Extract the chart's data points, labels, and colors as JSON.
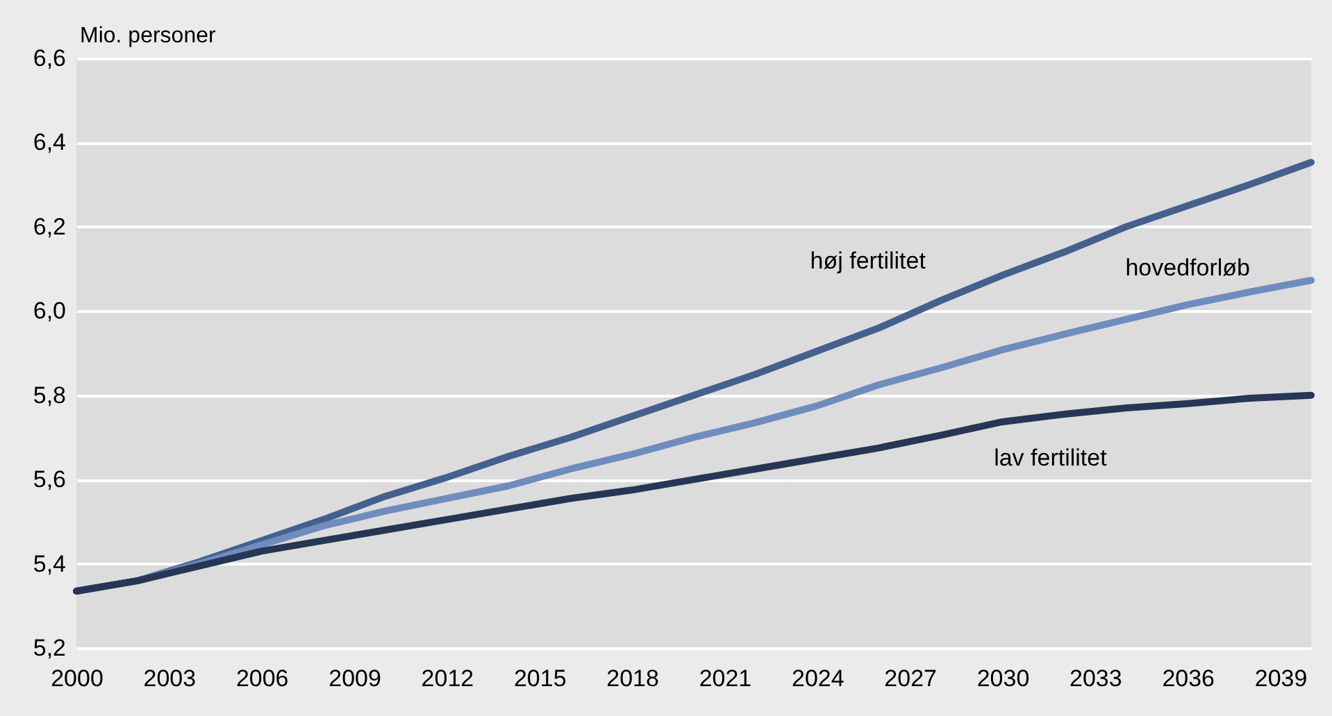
{
  "chart_data": {
    "type": "line",
    "ylabel": "Mio. personer",
    "x": [
      2000,
      2002,
      2004,
      2006,
      2008,
      2010,
      2012,
      2014,
      2016,
      2018,
      2020,
      2022,
      2024,
      2026,
      2028,
      2030,
      2032,
      2034,
      2036,
      2038,
      2040
    ],
    "series": [
      {
        "name": "høj fertilitet",
        "color": "#45608f",
        "values": [
          5.335,
          5.36,
          5.405,
          5.455,
          5.505,
          5.56,
          5.605,
          5.655,
          5.7,
          5.75,
          5.8,
          5.85,
          5.905,
          5.96,
          6.025,
          6.085,
          6.14,
          6.2,
          6.25,
          6.3,
          6.353
        ]
      },
      {
        "name": "hovedforløb",
        "color": "#6f8cbf",
        "values": [
          5.335,
          5.36,
          5.4,
          5.445,
          5.49,
          5.525,
          5.555,
          5.585,
          5.625,
          5.66,
          5.7,
          5.735,
          5.775,
          5.825,
          5.865,
          5.908,
          5.945,
          5.98,
          6.015,
          6.045,
          6.073
        ]
      },
      {
        "name": "lav fertilitet",
        "color": "#263655",
        "values": [
          5.335,
          5.36,
          5.395,
          5.43,
          5.455,
          5.48,
          5.505,
          5.53,
          5.555,
          5.575,
          5.6,
          5.625,
          5.65,
          5.675,
          5.705,
          5.737,
          5.755,
          5.77,
          5.78,
          5.793,
          5.8
        ]
      }
    ],
    "xlim": [
      2000,
      2040
    ],
    "xticks": [
      2000,
      2003,
      2006,
      2009,
      2012,
      2015,
      2018,
      2021,
      2024,
      2027,
      2030,
      2033,
      2036,
      2039
    ],
    "ylim": [
      5.2,
      6.6
    ],
    "yticks": [
      {
        "value": 5.2,
        "label": "5,2"
      },
      {
        "value": 5.4,
        "label": "5,4"
      },
      {
        "value": 5.6,
        "label": "5,6"
      },
      {
        "value": 5.8,
        "label": "5,8"
      },
      {
        "value": 6.0,
        "label": "6,0"
      },
      {
        "value": 6.2,
        "label": "6,2"
      },
      {
        "value": 6.4,
        "label": "6,4"
      },
      {
        "value": 6.6,
        "label": "6,6"
      }
    ],
    "grid": "y",
    "legend": false,
    "line_style": "solid",
    "marker": "none"
  }
}
